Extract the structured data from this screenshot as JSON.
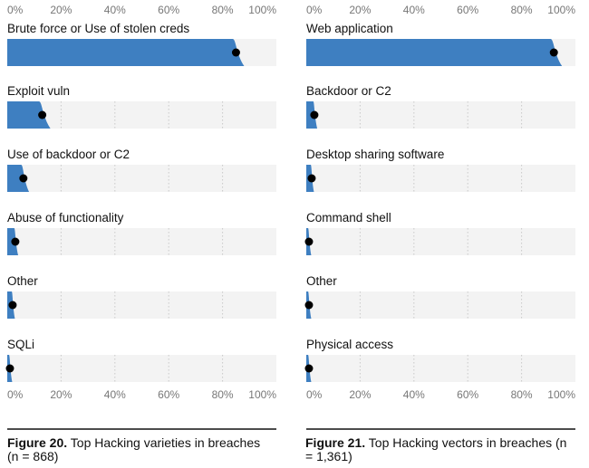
{
  "chart_data": [
    {
      "type": "bar",
      "categories": [
        "Brute force or Use of stolen creds",
        "Exploit vuln",
        "Use of backdoor or C2",
        "Abuse of functionality",
        "Other",
        "SQLi"
      ],
      "values": [
        85,
        13,
        6,
        3,
        2,
        1
      ],
      "xlim": [
        0,
        100
      ],
      "x_ticks": [
        "0%",
        "20%",
        "40%",
        "60%",
        "80%",
        "100%"
      ],
      "grid": true,
      "bar_color": "#3e7fc1",
      "caption_label": "Figure 20.",
      "caption_text": "Top Hacking varieties in breaches (n = 868)"
    },
    {
      "type": "bar",
      "categories": [
        "Web application",
        "Backdoor or C2",
        "Desktop sharing software",
        "Command shell",
        "Other",
        "Physical access"
      ],
      "values": [
        92,
        3,
        2,
        1,
        1,
        1
      ],
      "xlim": [
        0,
        100
      ],
      "x_ticks": [
        "0%",
        "20%",
        "40%",
        "60%",
        "80%",
        "100%"
      ],
      "grid": true,
      "bar_color": "#3e7fc1",
      "caption_label": "Figure 21.",
      "caption_text": "Top Hacking vectors in breaches (n = 1,361)"
    }
  ]
}
